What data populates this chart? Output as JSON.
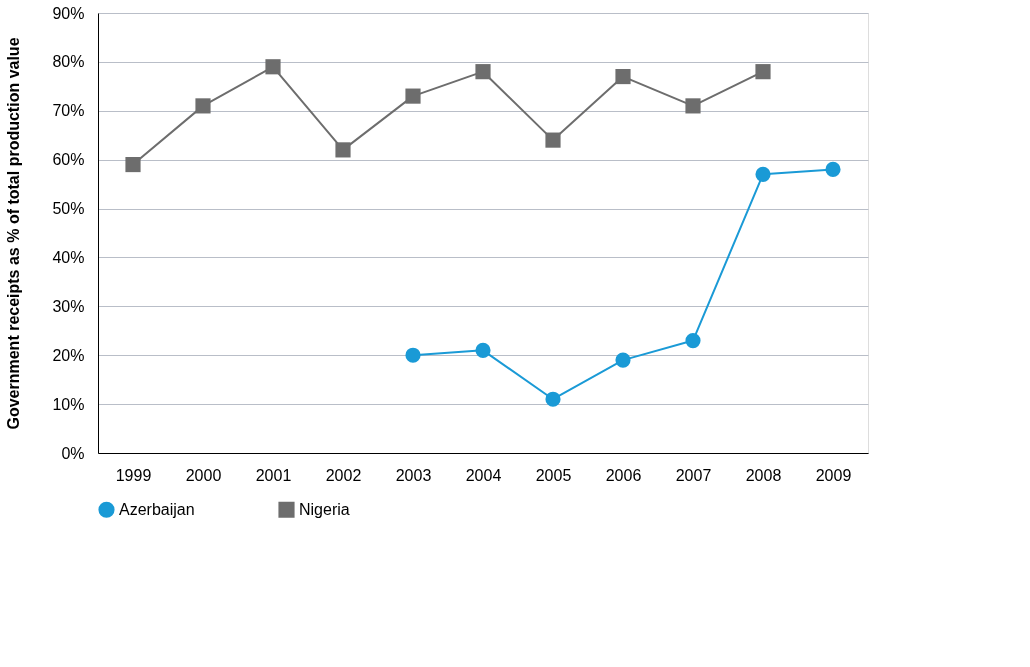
{
  "chart_data": {
    "type": "line",
    "ylabel": "Government receipts as % of total production value",
    "categories": [
      "1999",
      "2000",
      "2001",
      "2002",
      "2003",
      "2004",
      "2005",
      "2006",
      "2007",
      "2008",
      "2009"
    ],
    "series": [
      {
        "name": "Azerbaijan",
        "color": "#1a9ad6",
        "marker": "circle",
        "values": [
          null,
          null,
          null,
          null,
          20,
          21,
          11,
          19,
          23,
          57,
          58
        ]
      },
      {
        "name": "Nigeria",
        "color": "#6d6d6d",
        "marker": "square",
        "values": [
          59,
          71,
          79,
          62,
          73,
          78,
          64,
          77,
          71,
          78,
          null
        ]
      }
    ],
    "ylim": [
      0,
      90
    ],
    "yticks": [
      {
        "value": 0,
        "label": "0%"
      },
      {
        "value": 10,
        "label": "10%"
      },
      {
        "value": 20,
        "label": "20%"
      },
      {
        "value": 30,
        "label": "30%"
      },
      {
        "value": 40,
        "label": "40%"
      },
      {
        "value": 50,
        "label": "50%"
      },
      {
        "value": 60,
        "label": "60%"
      },
      {
        "value": 70,
        "label": "70%"
      },
      {
        "value": 80,
        "label": "80%"
      },
      {
        "value": 90,
        "label": "90%"
      }
    ],
    "grid": "y",
    "legend": "bottom left",
    "line_style": "solid"
  }
}
